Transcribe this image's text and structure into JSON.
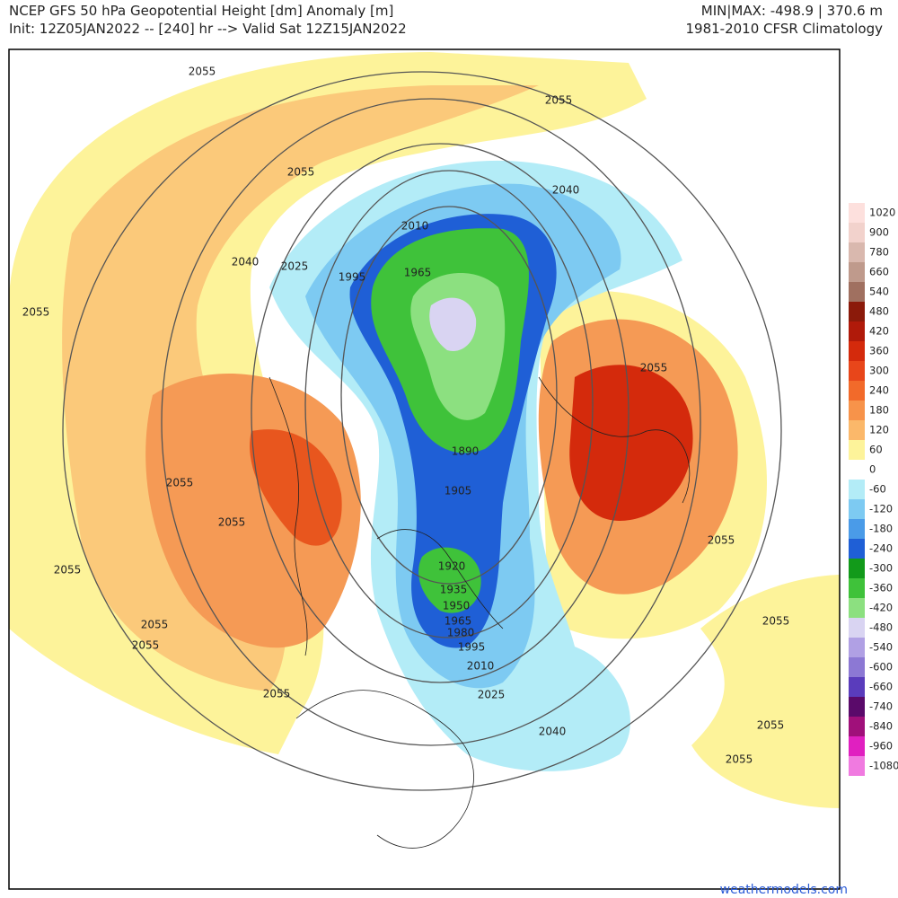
{
  "header": {
    "left_line1": "NCEP GFS 50 hPa Geopotential Height [dm] Anomaly [m]",
    "left_line2": "Init: 12Z05JAN2022 -- [240] hr --> Valid Sat 12Z15JAN2022",
    "right_line1": "MIN|MAX: -498.9 | 370.6 m",
    "right_line2": "1981-2010 CFSR Climatology"
  },
  "colorbar": {
    "labels": [
      1020,
      900,
      780,
      660,
      540,
      480,
      420,
      360,
      300,
      240,
      180,
      120,
      60,
      0,
      -60,
      -120,
      -180,
      -240,
      -300,
      -360,
      -420,
      -480,
      -540,
      -600,
      -660,
      -740,
      -840,
      -960,
      -1080
    ],
    "colors": [
      "#fde0dd",
      "#f2d2cc",
      "#d9b8ae",
      "#bf9a8c",
      "#a07060",
      "#8b1a0a",
      "#b01a0a",
      "#d42a0c",
      "#e8461a",
      "#f26a2a",
      "#f7934a",
      "#fbb86a",
      "#fdf39a",
      "#ffffff",
      "#b3ecf7",
      "#7dcaf2",
      "#4a9be8",
      "#1f5fd6",
      "#129a1a",
      "#3fc23a",
      "#8ce080",
      "#d9d4f2",
      "#b0a0e4",
      "#8c78d4",
      "#5a3cbc",
      "#5a0a6a",
      "#a0107a",
      "#e020c0",
      "#f07ae0"
    ]
  },
  "contour_labels": [
    2055,
    2055,
    2055,
    2040,
    2010,
    2040,
    2025,
    1965,
    1995,
    2055,
    2055,
    1890,
    2055,
    1905,
    2055,
    2055,
    2055,
    1920,
    1935,
    1950,
    1965,
    2055,
    2055,
    1980,
    2055,
    1995,
    2010,
    2055,
    2025,
    2040,
    2055,
    2055
  ],
  "footer": "weathermodels.com"
}
